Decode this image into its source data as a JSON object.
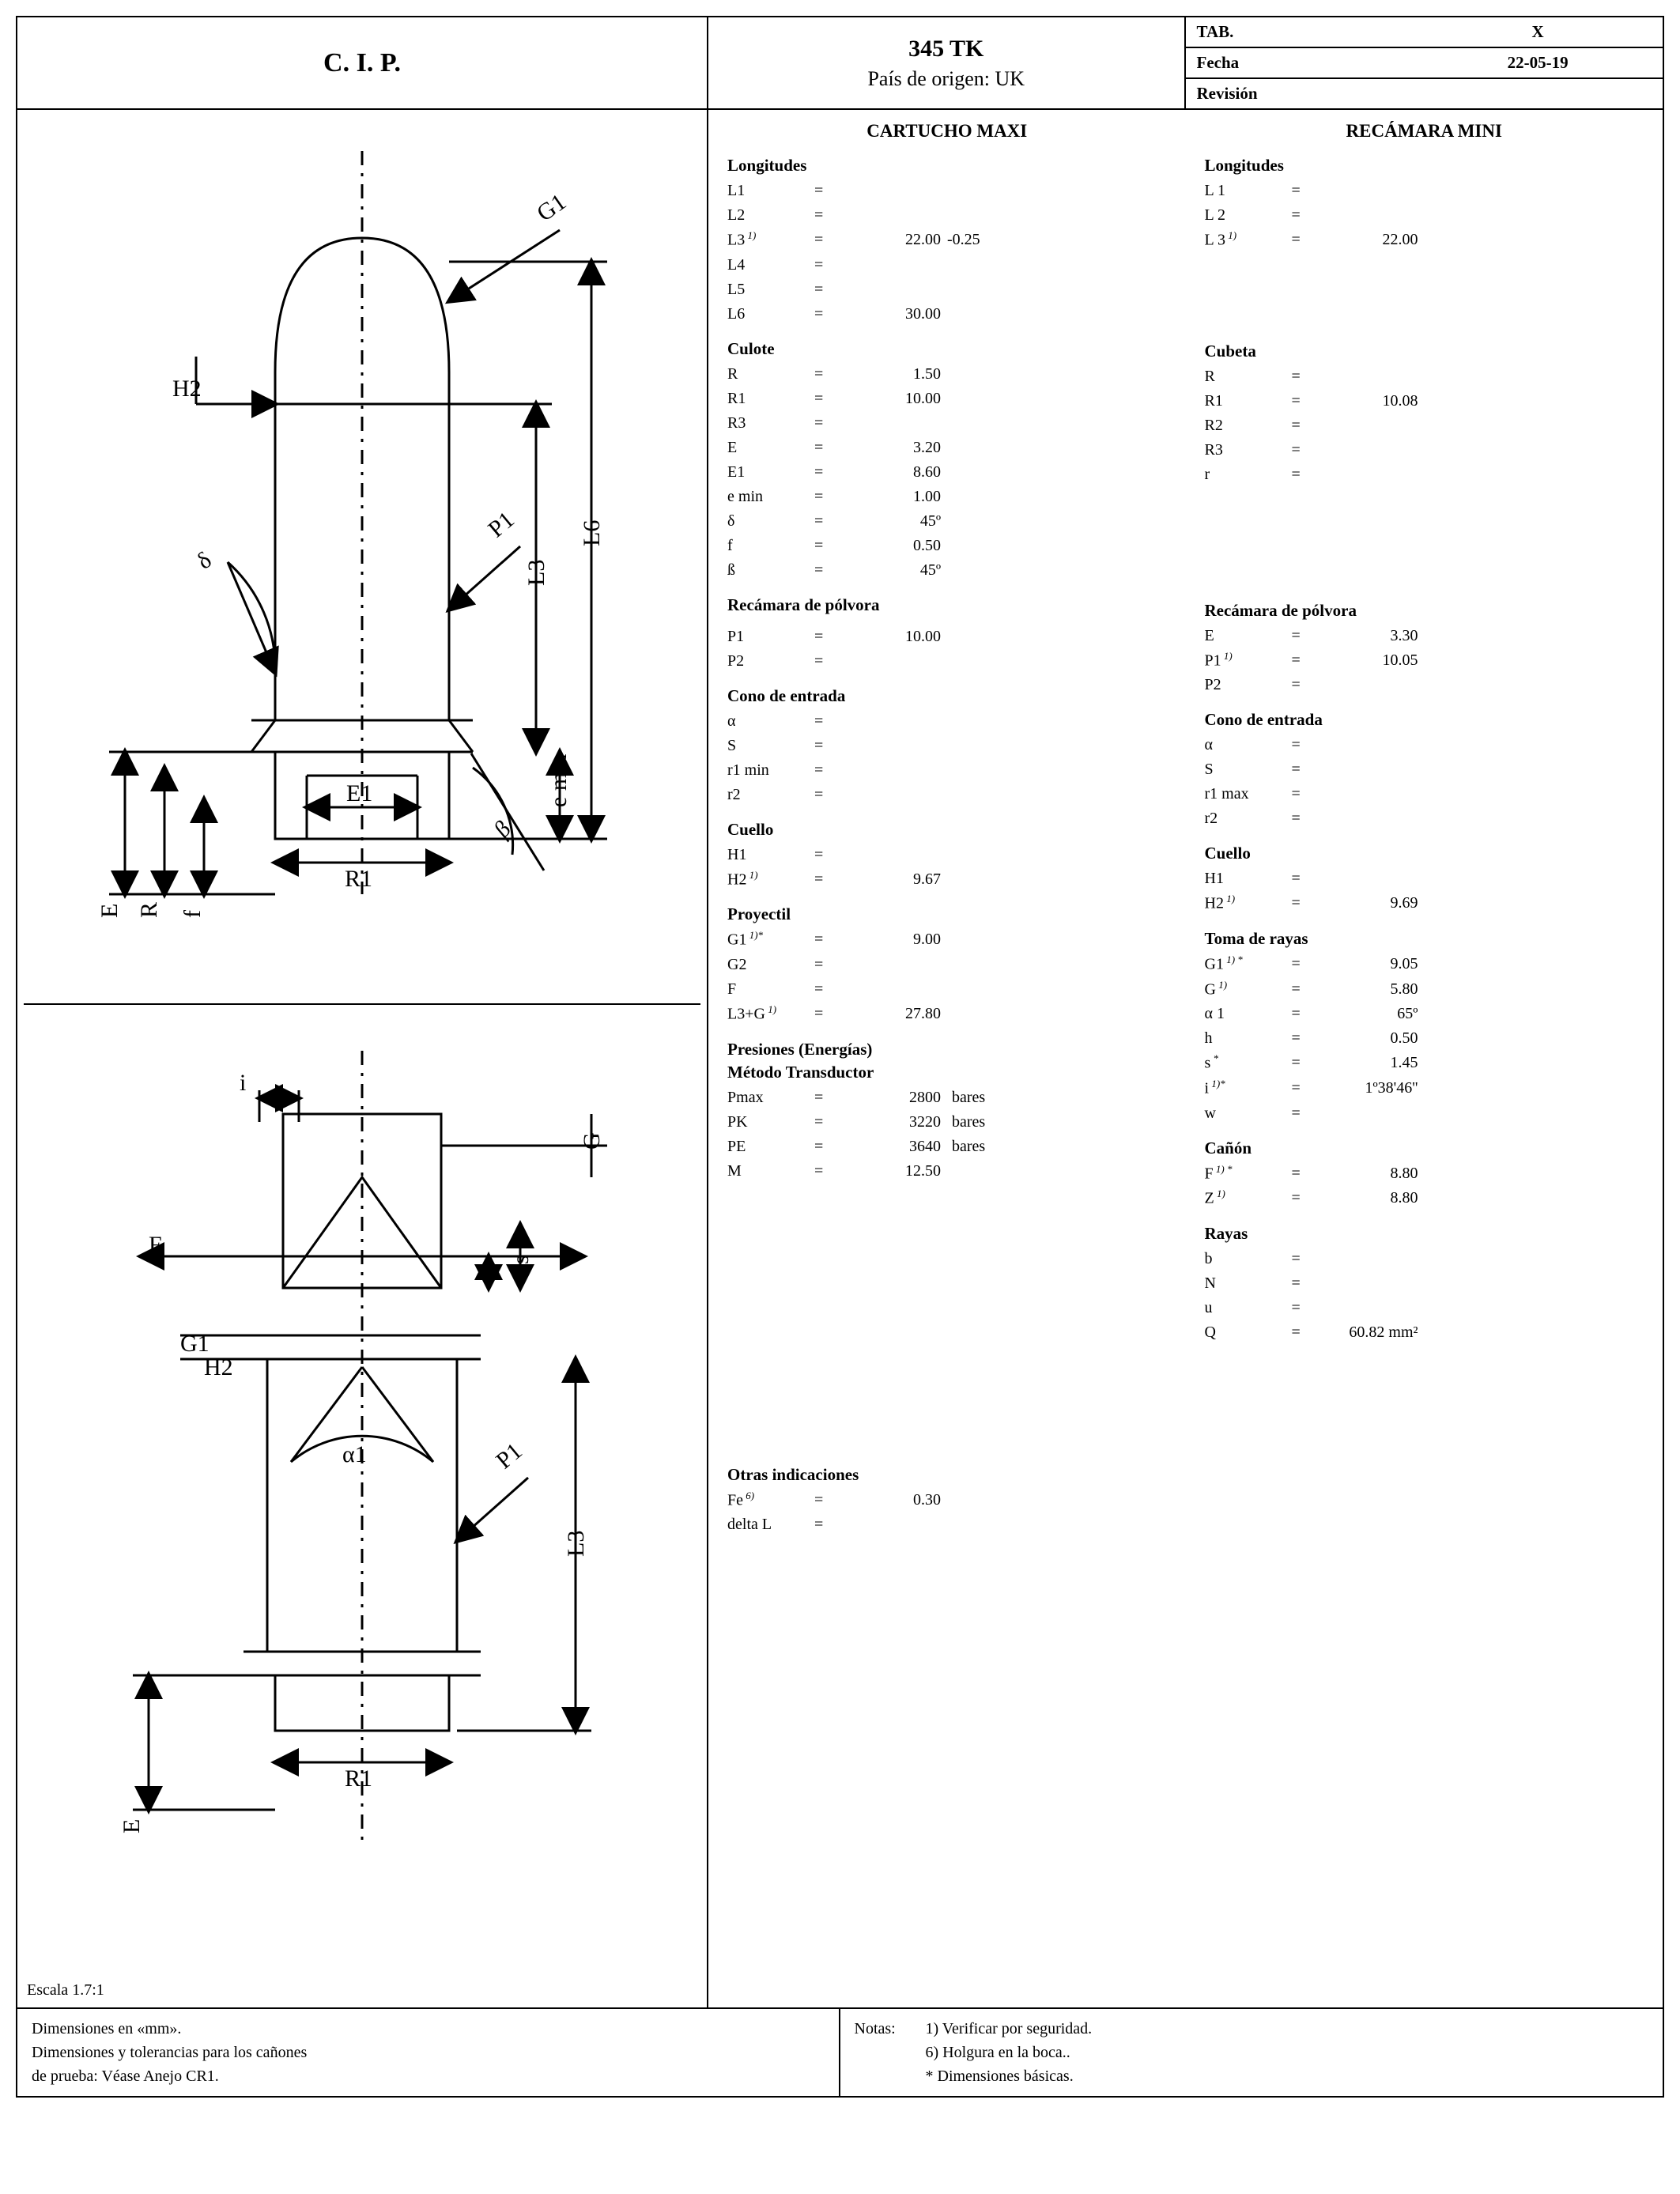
{
  "header": {
    "org": "C. I. P.",
    "title": "345 TK",
    "origin_label": "País de origen: UK",
    "tab_label": "TAB.",
    "tab_value": "X",
    "date_label": "Fecha",
    "date_value": "22-05-19",
    "rev_label": "Revisión",
    "rev_value": ""
  },
  "columns": {
    "cartucho_title": "CARTUCHO  MAXI",
    "recamara_title": "RECÁMARA MINI"
  },
  "cartucho": {
    "longitudes": {
      "heading": "Longitudes",
      "rows": [
        {
          "sym": "L1",
          "val": ""
        },
        {
          "sym": "L2",
          "val": ""
        },
        {
          "sym": "L3",
          "sup": "1)",
          "val": "22.00",
          "tol": "-0.25"
        },
        {
          "sym": "L4",
          "val": ""
        },
        {
          "sym": "L5",
          "val": ""
        },
        {
          "sym": "L6",
          "val": "30.00"
        }
      ]
    },
    "culote": {
      "heading": "Culote",
      "rows": [
        {
          "sym": "R",
          "val": "1.50"
        },
        {
          "sym": "R1",
          "val": "10.00"
        },
        {
          "sym": "R3",
          "val": ""
        },
        {
          "sym": "E",
          "val": "3.20"
        },
        {
          "sym": "E1",
          "val": "8.60"
        },
        {
          "sym": "e min",
          "val": "1.00"
        },
        {
          "sym": "δ",
          "val": "45º"
        },
        {
          "sym": "f",
          "val": "0.50"
        },
        {
          "sym": "ß",
          "val": "45º"
        }
      ]
    },
    "polvora": {
      "heading": "Recámara de pólvora",
      "rows": [
        {
          "sym": "P1",
          "val": "10.00"
        },
        {
          "sym": "P2",
          "val": ""
        }
      ]
    },
    "cono": {
      "heading": "Cono de entrada",
      "rows": [
        {
          "sym": "α",
          "val": ""
        },
        {
          "sym": "S",
          "val": ""
        },
        {
          "sym": "r1 min",
          "val": ""
        },
        {
          "sym": "r2",
          "val": ""
        }
      ]
    },
    "cuello": {
      "heading": "Cuello",
      "rows": [
        {
          "sym": "H1",
          "val": ""
        },
        {
          "sym": "H2",
          "sup": "1)",
          "val": "9.67"
        }
      ]
    },
    "proyectil": {
      "heading": "Proyectil",
      "rows": [
        {
          "sym": "G1",
          "sup": "1)*",
          "val": "9.00"
        },
        {
          "sym": "G2",
          "val": ""
        },
        {
          "sym": "F",
          "val": ""
        },
        {
          "sym": "L3+G",
          "sup": "1)",
          "val": "27.80"
        }
      ]
    },
    "presiones": {
      "heading": "Presiones (Energías)",
      "subheading": "Método Transductor",
      "rows": [
        {
          "sym": "Pmax",
          "val": "2800",
          "unit": "bares"
        },
        {
          "sym": "PK",
          "val": "3220",
          "unit": "bares"
        },
        {
          "sym": "PE",
          "val": "3640",
          "unit": "bares"
        },
        {
          "sym": "M",
          "val": "12.50"
        }
      ]
    },
    "otras": {
      "heading": "Otras indicaciones",
      "rows": [
        {
          "sym": "Fe",
          "sup": "6)",
          "val": "0.30"
        },
        {
          "sym": "delta L",
          "val": ""
        }
      ]
    }
  },
  "recamara": {
    "longitudes": {
      "heading": "Longitudes",
      "rows": [
        {
          "sym": "L 1",
          "val": ""
        },
        {
          "sym": "L 2",
          "val": ""
        },
        {
          "sym": "L 3",
          "sup": "1)",
          "val": "22.00"
        }
      ]
    },
    "cubeta": {
      "heading": "Cubeta",
      "rows": [
        {
          "sym": "R",
          "val": ""
        },
        {
          "sym": "R1",
          "val": "10.08"
        },
        {
          "sym": "R2",
          "val": ""
        },
        {
          "sym": "R3",
          "val": ""
        },
        {
          "sym": "r",
          "val": ""
        }
      ]
    },
    "polvora": {
      "heading": "Recámara de pólvora",
      "rows": [
        {
          "sym": "E",
          "val": "3.30"
        },
        {
          "sym": "P1",
          "sup": "1)",
          "val": "10.05"
        },
        {
          "sym": "P2",
          "val": ""
        }
      ]
    },
    "cono": {
      "heading": "Cono de entrada",
      "rows": [
        {
          "sym": "α",
          "val": ""
        },
        {
          "sym": "S",
          "val": ""
        },
        {
          "sym": "r1 max",
          "val": ""
        },
        {
          "sym": "r2",
          "val": ""
        }
      ]
    },
    "cuello": {
      "heading": "Cuello",
      "rows": [
        {
          "sym": "H1",
          "val": ""
        },
        {
          "sym": "H2",
          "sup": "1)",
          "val": "9.69"
        }
      ]
    },
    "rayas_toma": {
      "heading": "Toma de rayas",
      "rows": [
        {
          "sym": "G1",
          "sup": "1) *",
          "val": "9.05"
        },
        {
          "sym": "G",
          "sup": "1)",
          "val": "5.80"
        },
        {
          "sym": "α 1",
          "val": "65º"
        },
        {
          "sym": "h",
          "val": "0.50"
        },
        {
          "sym": "s",
          "sup": "*",
          "val": "1.45"
        },
        {
          "sym": "i",
          "sup": "1)*",
          "val": "1º38'46''"
        },
        {
          "sym": "w",
          "val": ""
        }
      ]
    },
    "canon": {
      "heading": "Cañón",
      "rows": [
        {
          "sym": "F",
          "sup": "1) *",
          "val": "8.80"
        },
        {
          "sym": "Z",
          "sup": "1)",
          "val": "8.80"
        }
      ]
    },
    "rayas": {
      "heading": "Rayas",
      "rows": [
        {
          "sym": "b",
          "val": ""
        },
        {
          "sym": "N",
          "val": ""
        },
        {
          "sym": "u",
          "val": ""
        },
        {
          "sym": "Q",
          "val": "60.82 mm²"
        }
      ]
    }
  },
  "drawing": {
    "scale_label": "Escala 1.7:1",
    "top_labels": {
      "G1": "G1",
      "H2": "H2",
      "L6": "L6",
      "L3": "L3",
      "delta": "δ",
      "P1": "P1",
      "E1": "E1",
      "R1": "R1",
      "beta": "β",
      "emin": "e min",
      "E": "E",
      "R": "R",
      "f": "f"
    },
    "bottom_labels": {
      "i": "i",
      "G": "G",
      "s": "s",
      "h": "h",
      "F": "F",
      "G1": "G1",
      "H2": "H2",
      "alpha1": "α1",
      "P1": "P1",
      "L3": "L3",
      "R1": "R1",
      "E": "E"
    },
    "stroke": "#000000",
    "stroke_width": 3
  },
  "footer": {
    "left_lines": [
      "Dimensiones en «mm».",
      "Dimensiones y tolerancias para los cañones",
      "de prueba: Véase Anejo  CR1."
    ],
    "notas_label": "Notas:",
    "notas": [
      "1) Verificar por seguridad.",
      "6) Holgura en la boca..",
      "*  Dimensiones básicas."
    ]
  },
  "style": {
    "bg": "#ffffff",
    "fg": "#000000",
    "font": "Times New Roman",
    "base_fontsize_pt": 15,
    "heading_fontsize_pt": 17,
    "title_fontsize_pt": 23
  }
}
